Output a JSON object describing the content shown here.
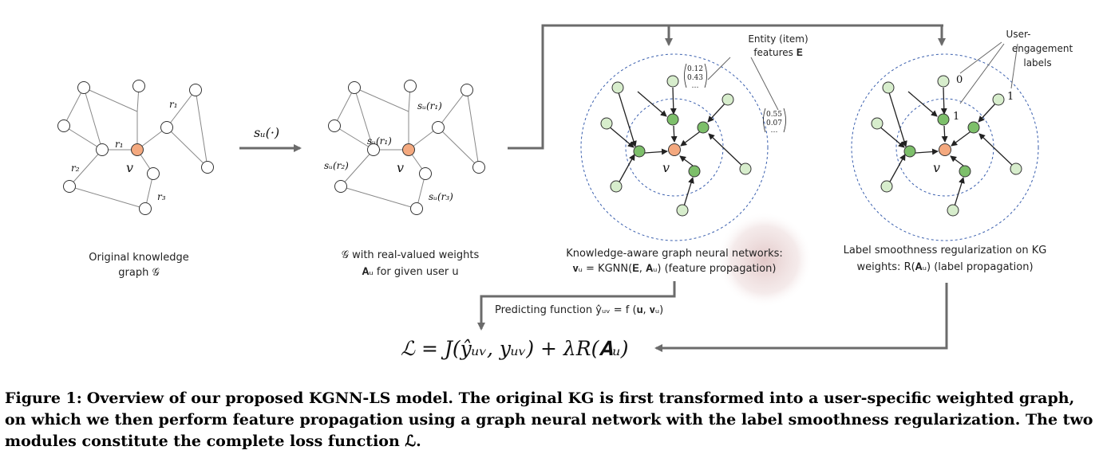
{
  "panel1": {
    "caption_line1": "Original knowledge",
    "caption_line2": "graph 𝒢",
    "edge_labels": {
      "r1_top": "r₁",
      "r1_center": "r₁",
      "r2": "r₂",
      "r3": "r₃"
    },
    "center_label": "v"
  },
  "transform_label": "sᵤ(·)",
  "panel2": {
    "caption_line1": "𝒢 with real-valued weights",
    "caption_line2": "𝐀ᵤ for given user u",
    "edge_labels": {
      "r1_top": "sᵤ(r₁)",
      "r1_center": "sᵤ(r₁)",
      "r2": "sᵤ(r₂)",
      "r3": "sᵤ(r₃)"
    },
    "center_label": "v"
  },
  "panel3": {
    "callout_line1": "Entity (item)",
    "callout_line2": "features 𝐄",
    "feature_vec1": [
      "0.12",
      "0.43",
      "…"
    ],
    "feature_vec2": [
      "0.55",
      "0.07",
      "…"
    ],
    "caption_line1": "Knowledge-aware graph neural networks:",
    "caption_line2": "𝐯ᵤ = KGNN(𝐄, 𝐀ᵤ) (feature propagation)",
    "center_label": "v"
  },
  "panel4": {
    "callout_line1": "User-",
    "callout_line2": "engagement",
    "callout_line3": "labels",
    "label_a": "0",
    "label_b": "1",
    "label_c": "1",
    "caption_line1": "Label smoothness regularization on KG",
    "caption_line2": "weights: R(𝐀ᵤ) (label propagation)",
    "center_label": "v"
  },
  "predict_label": "Predicting function ŷᵤᵥ = f (𝐮, 𝐯ᵤ)",
  "loss_formula": "ℒ = J(ŷᵤᵥ, yᵤᵥ) + λR(𝐀ᵤ)",
  "caption": {
    "label": "Figure 1:",
    "text": "Overview of our proposed KGNN-LS model. The original KG is first transformed into a user-specific weighted graph, on which we then perform feature propagation using a graph neural network with the label smoothness regularization. The two modules constitute the complete loss function ℒ."
  },
  "colors": {
    "center_node": "#f4a97f",
    "hop1_node": "#7dbf6a",
    "hop2_node": "#d7edcc",
    "white_node": "#ffffff",
    "circle_dash": "#3a5fae",
    "arrow_gray": "#6b6b6b",
    "highlight": "#d9b6b6"
  }
}
